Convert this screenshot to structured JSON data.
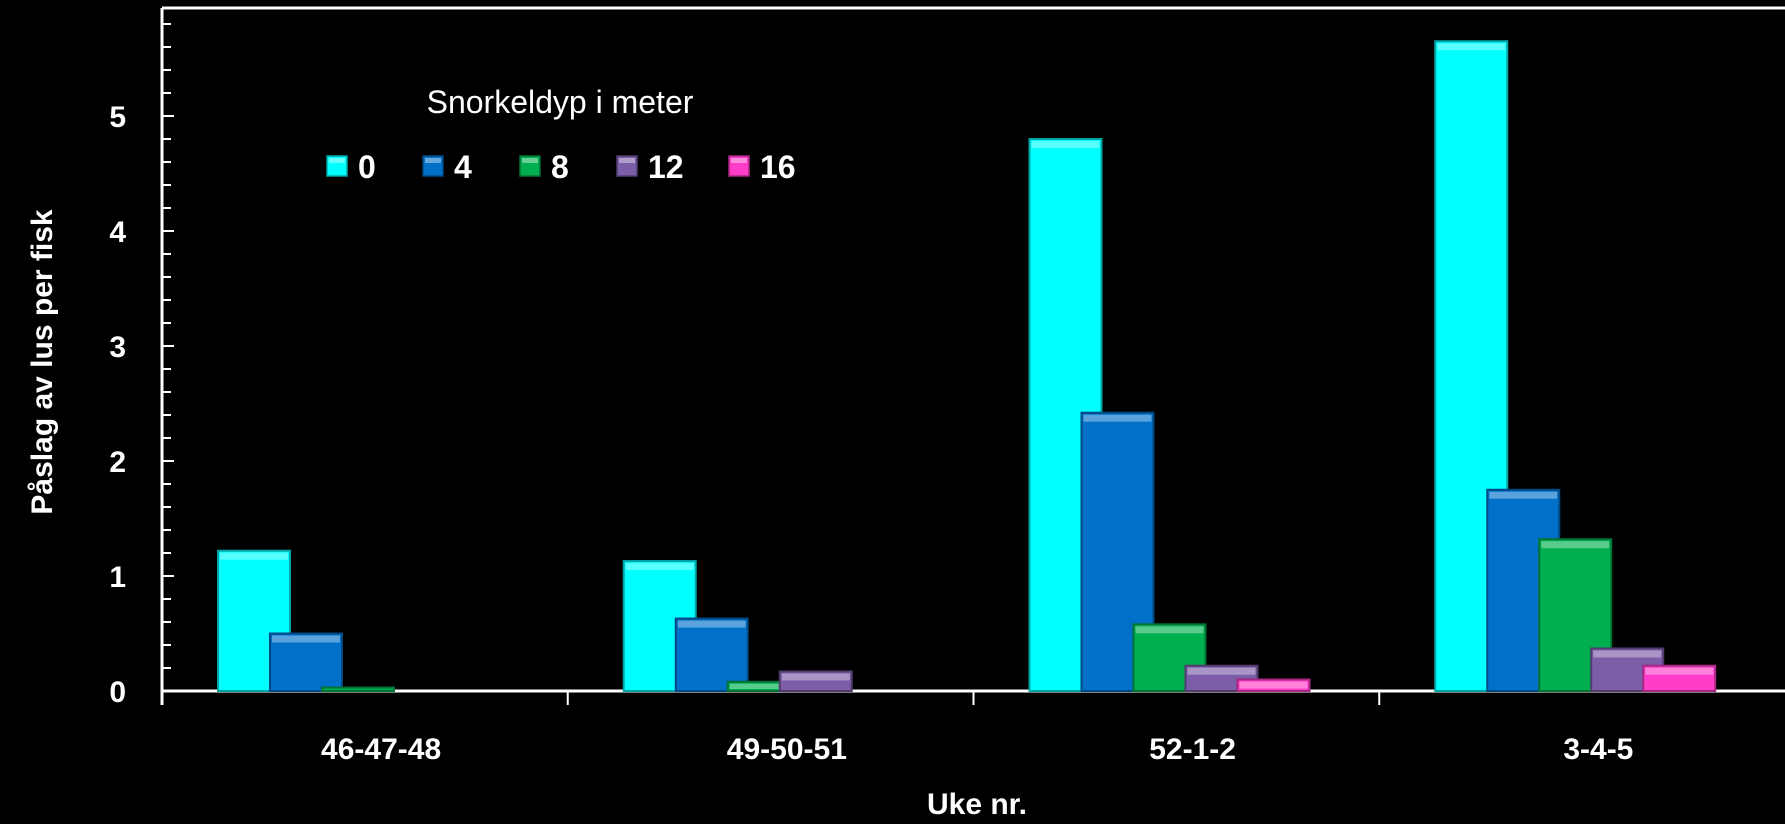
{
  "chart_data": {
    "type": "bar",
    "title": "",
    "xlabel": "Uke nr.",
    "ylabel": "Påslag av lus per fisk",
    "ylim": [
      0,
      6
    ],
    "yticks": [
      "0",
      "1",
      "2",
      "3",
      "4",
      "5"
    ],
    "categories": [
      "46-47-48",
      "49-50-51",
      "52-1-2",
      "3-4-5"
    ],
    "legend": {
      "title": "Snorkeldyp i meter",
      "placement": "top-left"
    },
    "series": [
      {
        "name": "0",
        "color": "#00ffff",
        "values": [
          1.22,
          1.13,
          4.8,
          5.65
        ]
      },
      {
        "name": "4",
        "color": "#0070c8",
        "values": [
          0.5,
          0.63,
          2.42,
          1.75
        ]
      },
      {
        "name": "8",
        "color": "#00b050",
        "values": [
          0.03,
          0.08,
          0.58,
          1.32
        ]
      },
      {
        "name": "12",
        "color": "#7b5ea7",
        "values": [
          0.0,
          0.17,
          0.22,
          0.37
        ]
      },
      {
        "name": "16",
        "color": "#ff3dc8",
        "values": [
          0.0,
          0.0,
          0.1,
          0.22
        ]
      }
    ],
    "grid": false
  }
}
